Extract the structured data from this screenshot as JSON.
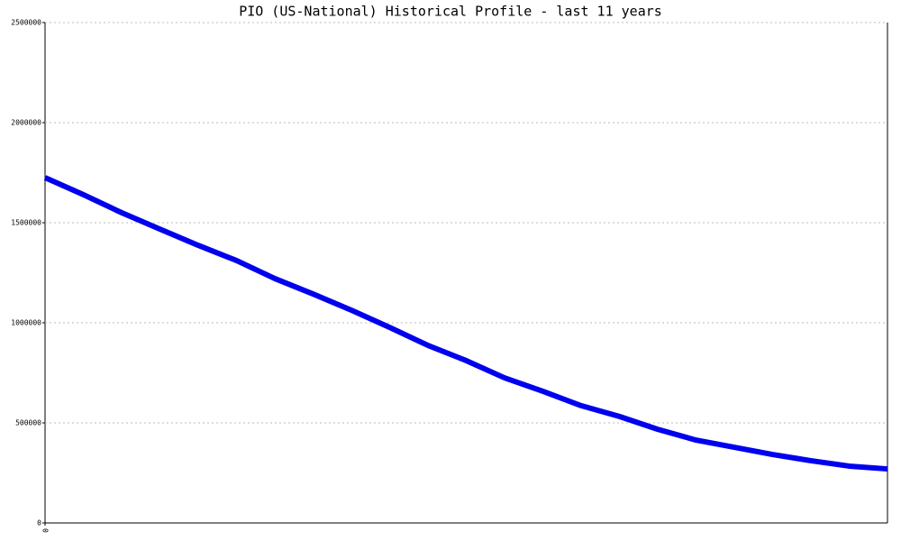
{
  "chart_data": {
    "type": "line",
    "title": "PIO (US-National) Historical Profile - last 11 years",
    "categories": [
      "0",
      null,
      null,
      null,
      null,
      null,
      null,
      null,
      null,
      null,
      null,
      null,
      null,
      null,
      null,
      null,
      null,
      null,
      null,
      null,
      null,
      null,
      null
    ],
    "series": [
      {
        "name": "PIO",
        "color": "#0000ee",
        "values": [
          1725000,
          1640000,
          1550000,
          1468000,
          1387000,
          1311000,
          1221000,
          1144000,
          1063000,
          977000,
          887000,
          811000,
          725000,
          658000,
          586000,
          532000,
          468000,
          414000,
          378000,
          342000,
          311000,
          284000,
          270000
        ]
      }
    ],
    "ylim": [
      0,
      2500000
    ],
    "yticks": [
      0,
      500000,
      1000000,
      1500000,
      2000000,
      2500000
    ],
    "grid": true
  }
}
